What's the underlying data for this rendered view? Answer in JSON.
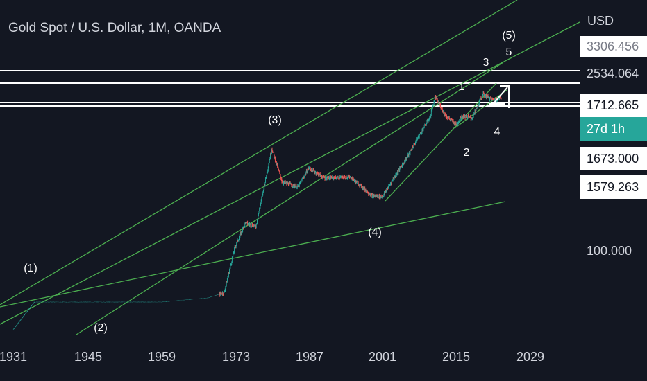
{
  "header": {
    "title": "Gold Spot / U.S. Dollar, 1M, OANDA"
  },
  "price_axis": {
    "currency": "USD",
    "labels": [
      {
        "text": "3306.456",
        "style": "white"
      },
      {
        "text": "2534.064",
        "style": "plain"
      },
      {
        "text": "1712.665",
        "style": "white"
      },
      {
        "text": "27d 1h",
        "style": "green"
      },
      {
        "text": "1673.000",
        "style": "white"
      },
      {
        "text": "1579.263",
        "style": "white"
      },
      {
        "text": "100.000",
        "style": "plain"
      }
    ]
  },
  "chart_data": {
    "type": "line",
    "title": "Gold Spot / U.S. Dollar, 1M, OANDA",
    "x_ticks": [
      "1931",
      "1945",
      "1959",
      "1973",
      "1987",
      "2001",
      "2015",
      "2029"
    ],
    "y_scale": "log",
    "y_unit": "USD",
    "series": [
      {
        "values_by_year": [
          [
            1931,
            20.7
          ],
          [
            1935,
            35
          ],
          [
            1945,
            35
          ],
          [
            1959,
            35
          ],
          [
            1968,
            38
          ],
          [
            1971,
            42
          ],
          [
            1973,
            100
          ],
          [
            1975,
            160
          ],
          [
            1977,
            150
          ],
          [
            1979,
            400
          ],
          [
            1980,
            670
          ],
          [
            1982,
            350
          ],
          [
            1985,
            320
          ],
          [
            1987,
            460
          ],
          [
            1990,
            380
          ],
          [
            1995,
            385
          ],
          [
            1999,
            270
          ],
          [
            2001,
            265
          ],
          [
            2003,
            370
          ],
          [
            2006,
            600
          ],
          [
            2008,
            870
          ],
          [
            2010,
            1220
          ],
          [
            2011,
            1800
          ],
          [
            2013,
            1250
          ],
          [
            2015,
            1060
          ],
          [
            2016,
            1250
          ],
          [
            2018,
            1200
          ],
          [
            2019,
            1500
          ],
          [
            2020,
            1900
          ],
          [
            2021,
            1780
          ],
          [
            2022,
            1700
          ],
          [
            2023,
            1760
          ]
        ]
      }
    ],
    "wave_labels": [
      "(1)",
      "(2)",
      "(3)",
      "(4)",
      "(5)",
      "1",
      "2",
      "3",
      "4",
      "5"
    ],
    "colors": {
      "background": "#131722",
      "trendline": "#4caf50",
      "candle_up": "#26a69a",
      "candle_down": "#ef5350",
      "level": "#ffffff"
    }
  }
}
